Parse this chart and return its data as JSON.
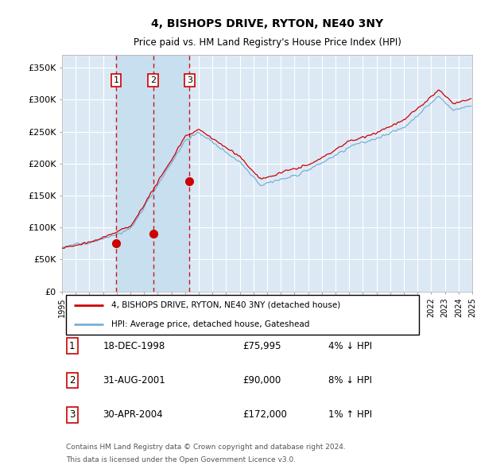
{
  "title": "4, BISHOPS DRIVE, RYTON, NE40 3NY",
  "subtitle": "Price paid vs. HM Land Registry's House Price Index (HPI)",
  "ylim": [
    0,
    370000
  ],
  "yticks": [
    0,
    50000,
    100000,
    150000,
    200000,
    250000,
    300000,
    350000
  ],
  "ytick_labels": [
    "£0",
    "£50K",
    "£100K",
    "£150K",
    "£200K",
    "£250K",
    "£300K",
    "£350K"
  ],
  "background_color": "#dce9f5",
  "grid_color": "#ffffff",
  "hpi_color": "#7ab0d4",
  "price_color": "#cc0000",
  "shade_color": "#c8dff0",
  "sale_years": [
    1998.96,
    2001.67,
    2004.33
  ],
  "sale_prices": [
    75995,
    90000,
    172000
  ],
  "sale_labels": [
    "1",
    "2",
    "3"
  ],
  "legend_price_label": "4, BISHOPS DRIVE, RYTON, NE40 3NY (detached house)",
  "legend_hpi_label": "HPI: Average price, detached house, Gateshead",
  "table_rows": [
    [
      "1",
      "18-DEC-1998",
      "£75,995",
      "4% ↓ HPI"
    ],
    [
      "2",
      "31-AUG-2001",
      "£90,000",
      "8% ↓ HPI"
    ],
    [
      "3",
      "30-APR-2004",
      "£172,000",
      "1% ↑ HPI"
    ]
  ],
  "footer": "Contains HM Land Registry data © Crown copyright and database right 2024.\nThis data is licensed under the Open Government Licence v3.0.",
  "xlim": [
    1995,
    2025
  ],
  "xticks": [
    1995,
    1996,
    1997,
    1998,
    1999,
    2000,
    2001,
    2002,
    2003,
    2004,
    2005,
    2006,
    2007,
    2008,
    2009,
    2010,
    2011,
    2012,
    2013,
    2014,
    2015,
    2016,
    2017,
    2018,
    2019,
    2020,
    2021,
    2022,
    2023,
    2024,
    2025
  ]
}
